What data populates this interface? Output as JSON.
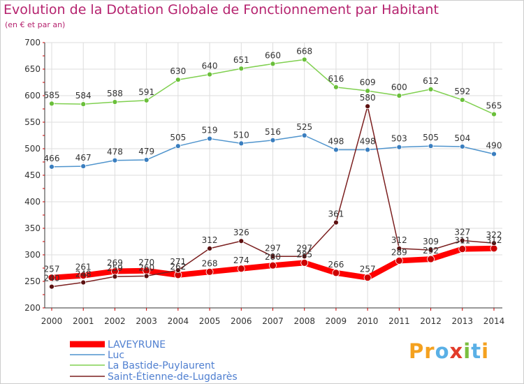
{
  "chart_data": {
    "type": "line",
    "title": "Evolution de la Dotation Globale de Fonctionnement par Habitant",
    "subtitle": "(en € et par an)",
    "x": [
      2000,
      2001,
      2002,
      2003,
      2004,
      2005,
      2006,
      2007,
      2008,
      2009,
      2010,
      2011,
      2012,
      2013,
      2014
    ],
    "ylim": [
      200,
      700
    ],
    "yticks": [
      200,
      250,
      300,
      350,
      400,
      450,
      500,
      550,
      600,
      650,
      700
    ],
    "grid": true,
    "legend_placement": "bottom-left",
    "series": [
      {
        "name": "LAVEYRUNE",
        "color": "#ff0000",
        "values": [
          257,
          261,
          269,
          270,
          262,
          268,
          274,
          280,
          285,
          266,
          257,
          289,
          292,
          311,
          312
        ],
        "labels": [
          "257",
          "261",
          "269",
          "270",
          "262",
          "268",
          "274",
          "280",
          "285",
          "266",
          "257",
          "289",
          "292",
          "311",
          "312"
        ]
      },
      {
        "name": "Luc",
        "color": "#4f94cd",
        "values": [
          466,
          467,
          478,
          479,
          505,
          519,
          510,
          516,
          525,
          498,
          498,
          503,
          505,
          504,
          490
        ],
        "labels": [
          "466",
          "467",
          "478",
          "479",
          "505",
          "519",
          "510",
          "516",
          "525",
          "498",
          "498",
          "503",
          "505",
          "504",
          "490"
        ]
      },
      {
        "name": "La Bastide-Puylaurent",
        "color": "#80d050",
        "values": [
          585,
          584,
          588,
          591,
          630,
          640,
          651,
          660,
          668,
          616,
          609,
          600,
          612,
          592,
          565
        ],
        "labels": [
          "585",
          "584",
          "588",
          "591",
          "630",
          "640",
          "651",
          "660",
          "668",
          "616",
          "609",
          "600",
          "612",
          "592",
          "565"
        ]
      },
      {
        "name": "Saint-Étienne-de-Lugdarès",
        "color": "#7b1f1f",
        "values": [
          240,
          248,
          259,
          260,
          271,
          312,
          326,
          297,
          297,
          361,
          580,
          312,
          309,
          327,
          322
        ],
        "labels": [
          "240",
          "248",
          "259",
          "260",
          "271",
          "312",
          "326",
          "297",
          "297",
          "361",
          "580",
          "312",
          "309",
          "327",
          "322"
        ]
      }
    ]
  },
  "logo": {
    "text": "Proxiti"
  }
}
